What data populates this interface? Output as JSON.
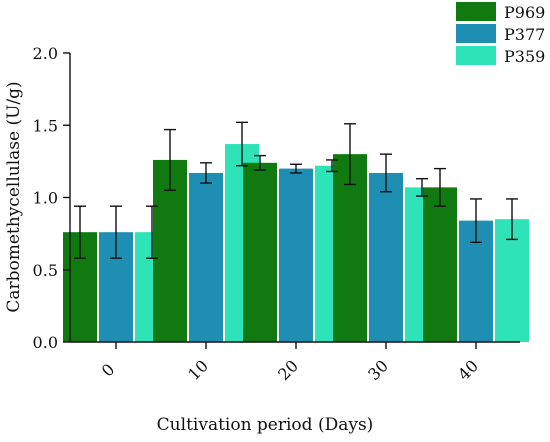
{
  "chart_data": {
    "type": "bar",
    "title": "",
    "xlabel": "Cultivation period (Days)",
    "ylabel": "Carbomethycellulase (U/g)",
    "categories": [
      "0",
      "10",
      "20",
      "30",
      "40"
    ],
    "ylim": [
      0,
      2.0
    ],
    "yticks": [
      "0.0",
      "0.5",
      "1.0",
      "1.5",
      "2.0"
    ],
    "grid": false,
    "legend_position": "top-right",
    "series": [
      {
        "name": "P969",
        "color": "#107a10",
        "values": [
          0.76,
          1.26,
          1.24,
          1.3,
          1.07
        ],
        "errors": [
          0.18,
          0.21,
          0.05,
          0.21,
          0.13
        ]
      },
      {
        "name": "P377",
        "color": "#1e8fb3",
        "values": [
          0.76,
          1.17,
          1.2,
          1.17,
          0.84
        ],
        "errors": [
          0.18,
          0.07,
          0.03,
          0.13,
          0.15
        ]
      },
      {
        "name": "P359",
        "color": "#2ee3b8",
        "values": [
          0.76,
          1.37,
          1.22,
          1.07,
          0.85
        ],
        "errors": [
          0.18,
          0.15,
          0.04,
          0.06,
          0.14
        ]
      }
    ]
  }
}
